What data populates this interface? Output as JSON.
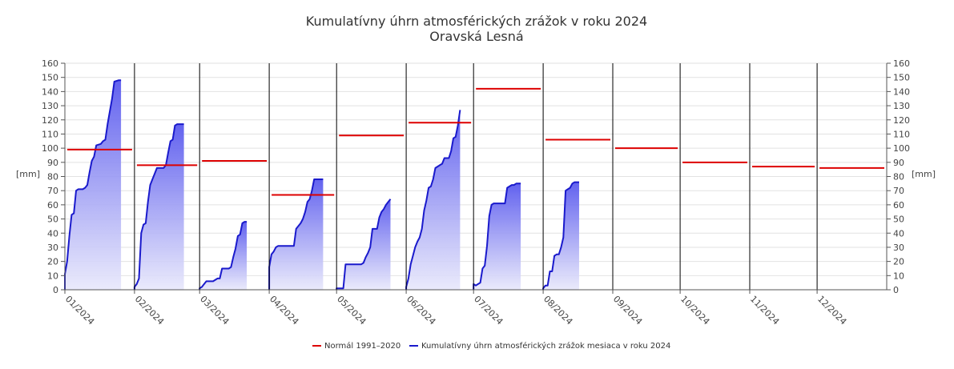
{
  "chart_data": {
    "type": "area",
    "title": "Kumulatívny úhrn atmosférických zrážok v roku 2024",
    "subtitle": "Oravská Lesná",
    "ylabel_left": "[mm]",
    "ylabel_right": "[mm]",
    "ylim": [
      0,
      160
    ],
    "yticks": [
      0,
      10,
      20,
      30,
      40,
      50,
      60,
      70,
      80,
      90,
      100,
      110,
      120,
      130,
      140,
      150,
      160
    ],
    "grid": true,
    "legend_position": "bottom-center",
    "months": [
      "01/2024",
      "02/2024",
      "03/2024",
      "04/2024",
      "05/2024",
      "06/2024",
      "07/2024",
      "08/2024",
      "09/2024",
      "10/2024",
      "11/2024",
      "12/2024"
    ],
    "month_days": [
      31,
      29,
      31,
      30,
      31,
      30,
      31,
      31,
      30,
      31,
      30,
      31
    ],
    "colors": {
      "normal": "#dd0000",
      "cumulative_line": "#1a1acc",
      "area_top": "#5a5aee",
      "area_bottom": "#e8e8fb"
    },
    "series": [
      {
        "name": "Normál 1991–2020",
        "type": "step",
        "values": [
          99,
          88,
          91,
          67,
          109,
          118,
          142,
          106,
          100,
          90,
          87,
          86
        ]
      },
      {
        "name": "Kumulatívny úhrn atmosférických zrážok mesiaca v roku 2024",
        "type": "area",
        "monthly_points": [
          [
            [
              1,
              11
            ],
            [
              2,
              20
            ],
            [
              3,
              38
            ],
            [
              4,
              53
            ],
            [
              5,
              54
            ],
            [
              6,
              70
            ],
            [
              7,
              71
            ],
            [
              9,
              71
            ],
            [
              10,
              72
            ],
            [
              11,
              74
            ],
            [
              12,
              83
            ],
            [
              13,
              91
            ],
            [
              14,
              94
            ],
            [
              15,
              102
            ],
            [
              17,
              103
            ],
            [
              18,
              105
            ],
            [
              19,
              106
            ],
            [
              20,
              117
            ],
            [
              21,
              126
            ],
            [
              22,
              135
            ],
            [
              23,
              147
            ],
            [
              25,
              148
            ],
            [
              26,
              148
            ]
          ],
          [
            [
              1,
              2
            ],
            [
              2,
              4
            ],
            [
              3,
              8
            ],
            [
              4,
              40
            ],
            [
              5,
              46
            ],
            [
              6,
              47
            ],
            [
              7,
              62
            ],
            [
              8,
              74
            ],
            [
              9,
              78
            ],
            [
              10,
              82
            ],
            [
              11,
              86
            ],
            [
              14,
              86
            ],
            [
              15,
              88
            ],
            [
              16,
              97
            ],
            [
              17,
              105
            ],
            [
              18,
              106
            ],
            [
              19,
              116
            ],
            [
              20,
              117
            ],
            [
              22,
              117
            ],
            [
              23,
              117
            ]
          ],
          [
            [
              1,
              1
            ],
            [
              2,
              2
            ],
            [
              3,
              4
            ],
            [
              4,
              6
            ],
            [
              7,
              6
            ],
            [
              8,
              7
            ],
            [
              9,
              8
            ],
            [
              10,
              8
            ],
            [
              11,
              15
            ],
            [
              14,
              15
            ],
            [
              15,
              16
            ],
            [
              16,
              23
            ],
            [
              17,
              29
            ],
            [
              18,
              38
            ],
            [
              19,
              39
            ],
            [
              20,
              47
            ],
            [
              21,
              48
            ],
            [
              22,
              48
            ]
          ],
          [
            [
              1,
              16
            ],
            [
              2,
              25
            ],
            [
              3,
              27
            ],
            [
              4,
              30
            ],
            [
              5,
              31
            ],
            [
              12,
              31
            ],
            [
              13,
              43
            ],
            [
              14,
              45
            ],
            [
              15,
              47
            ],
            [
              16,
              50
            ],
            [
              17,
              55
            ],
            [
              18,
              62
            ],
            [
              19,
              64
            ],
            [
              20,
              70
            ],
            [
              21,
              78
            ],
            [
              25,
              78
            ]
          ],
          [
            [
              1,
              1
            ],
            [
              2,
              1
            ],
            [
              4,
              1
            ],
            [
              5,
              18
            ],
            [
              12,
              18
            ],
            [
              13,
              19
            ],
            [
              14,
              23
            ],
            [
              15,
              26
            ],
            [
              16,
              30
            ],
            [
              17,
              43
            ],
            [
              19,
              43
            ],
            [
              20,
              51
            ],
            [
              21,
              55
            ],
            [
              22,
              57
            ],
            [
              23,
              60
            ],
            [
              24,
              62
            ],
            [
              25,
              64
            ]
          ],
          [
            [
              1,
              2
            ],
            [
              2,
              8
            ],
            [
              3,
              18
            ],
            [
              4,
              24
            ],
            [
              5,
              30
            ],
            [
              6,
              34
            ],
            [
              7,
              37
            ],
            [
              8,
              43
            ],
            [
              9,
              56
            ],
            [
              10,
              63
            ],
            [
              11,
              72
            ],
            [
              12,
              73
            ],
            [
              13,
              78
            ],
            [
              14,
              86
            ],
            [
              15,
              87
            ],
            [
              16,
              88
            ],
            [
              17,
              89
            ],
            [
              18,
              93
            ],
            [
              20,
              93
            ],
            [
              21,
              98
            ],
            [
              22,
              107
            ],
            [
              23,
              108
            ],
            [
              24,
              116
            ],
            [
              25,
              127
            ]
          ],
          [
            [
              1,
              4
            ],
            [
              2,
              3
            ],
            [
              3,
              4
            ],
            [
              4,
              5
            ],
            [
              5,
              15
            ],
            [
              6,
              17
            ],
            [
              7,
              31
            ],
            [
              8,
              52
            ],
            [
              9,
              60
            ],
            [
              10,
              61
            ],
            [
              15,
              61
            ],
            [
              16,
              72
            ],
            [
              17,
              73
            ],
            [
              18,
              74
            ],
            [
              19,
              74
            ],
            [
              20,
              75
            ],
            [
              21,
              75
            ],
            [
              22,
              75
            ]
          ],
          [
            [
              1,
              1
            ],
            [
              2,
              3
            ],
            [
              3,
              3
            ],
            [
              4,
              13
            ],
            [
              5,
              13
            ],
            [
              6,
              24
            ],
            [
              7,
              25
            ],
            [
              8,
              25
            ],
            [
              9,
              30
            ],
            [
              10,
              37
            ],
            [
              11,
              70
            ],
            [
              12,
              71
            ],
            [
              13,
              72
            ],
            [
              14,
              75
            ],
            [
              15,
              76
            ],
            [
              16,
              76
            ],
            [
              17,
              76
            ]
          ]
        ]
      }
    ]
  }
}
